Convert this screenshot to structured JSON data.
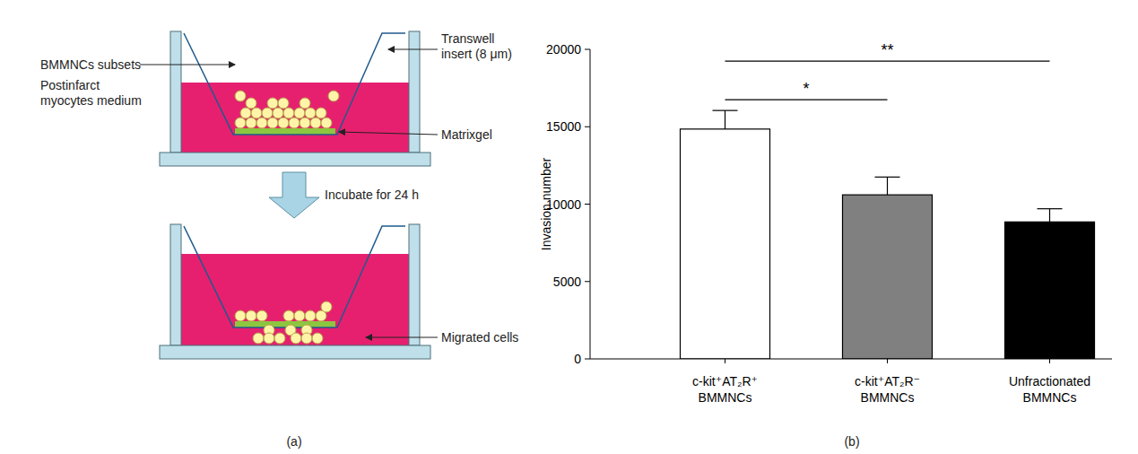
{
  "diagram": {
    "panel_label": "(a)",
    "labels": {
      "cells": "BMMNCs subsets",
      "insert": "Transwell insert (8 μm)",
      "gel": "Matrixgel",
      "medium": "Postinfarct myocytes medium",
      "step": "Incubate for 24 h",
      "migrated": "Migrated cells"
    }
  },
  "chart_data": {
    "type": "bar",
    "panel_label": "(b)",
    "y_label": "Invasion number",
    "categories": [
      "c-kit⁺AT₂R⁺ BMMNCs",
      "c-kit⁺AT₂R⁻ BMMNCs",
      "Unfractionated BMMNCs"
    ],
    "values": [
      14850,
      10600,
      8850
    ],
    "errors": [
      1200,
      1150,
      850
    ],
    "colors": [
      "#ffffff",
      "#808080",
      "#000000"
    ],
    "ylim": [
      0,
      20000
    ],
    "yticks": [
      0,
      5000,
      10000,
      15000,
      20000
    ],
    "comparisons": [
      {
        "pair": [
          0,
          1
        ],
        "label": "*"
      },
      {
        "pair": [
          0,
          2
        ],
        "label": "**"
      }
    ]
  }
}
